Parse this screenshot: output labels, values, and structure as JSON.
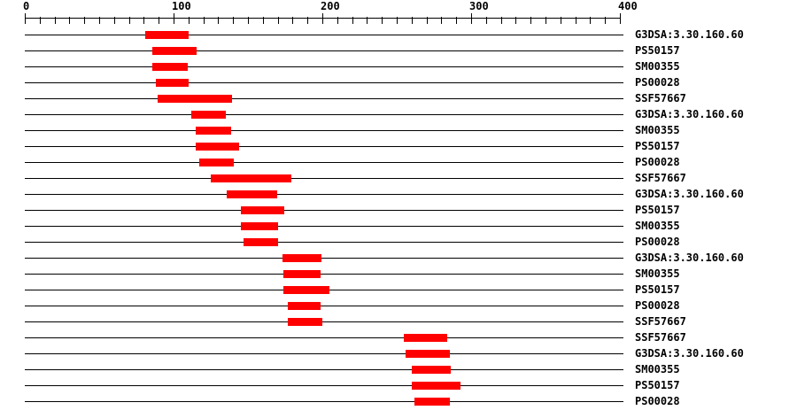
{
  "colors": {
    "background": "#ffffff",
    "axis": "#000000",
    "sequence_line": "#000000",
    "match_bar": "#ff0000",
    "text": "#000000"
  },
  "chart_data": {
    "type": "bar",
    "subtype": "horizontal-span-tracks",
    "title": "",
    "xlabel": "",
    "ylabel": "",
    "xlim": [
      0,
      400
    ],
    "grid": false,
    "legend_position": "none",
    "x_major_ticks": [
      0,
      100,
      200,
      300,
      400
    ],
    "x_major_tick_labels": [
      "0",
      "100",
      "200",
      "300",
      "400"
    ],
    "x_minor_tick_interval": 10,
    "rows": [
      {
        "label": "G3DSA:3.30.160.60",
        "start": 81,
        "end": 110
      },
      {
        "label": "PS50157",
        "start": 86,
        "end": 116
      },
      {
        "label": "SM00355",
        "start": 86,
        "end": 110
      },
      {
        "label": "PS00028",
        "start": 88,
        "end": 110
      },
      {
        "label": "SSF57667",
        "start": 89,
        "end": 139
      },
      {
        "label": "G3DSA:3.30.160.60",
        "start": 112,
        "end": 135
      },
      {
        "label": "SM00355",
        "start": 115,
        "end": 139
      },
      {
        "label": "PS50157",
        "start": 115,
        "end": 144
      },
      {
        "label": "PS00028",
        "start": 117,
        "end": 140
      },
      {
        "label": "SSF57667",
        "start": 125,
        "end": 179
      },
      {
        "label": "G3DSA:3.30.160.60",
        "start": 136,
        "end": 170
      },
      {
        "label": "PS50157",
        "start": 145,
        "end": 174
      },
      {
        "label": "SM00355",
        "start": 145,
        "end": 170
      },
      {
        "label": "PS00028",
        "start": 147,
        "end": 170
      },
      {
        "label": "G3DSA:3.30.160.60",
        "start": 173,
        "end": 199
      },
      {
        "label": "SM00355",
        "start": 174,
        "end": 199
      },
      {
        "label": "PS50157",
        "start": 174,
        "end": 205
      },
      {
        "label": "PS00028",
        "start": 177,
        "end": 199
      },
      {
        "label": "SSF57667",
        "start": 177,
        "end": 200
      },
      {
        "label": "SSF57667",
        "start": 255,
        "end": 284
      },
      {
        "label": "G3DSA:3.30.160.60",
        "start": 256,
        "end": 286
      },
      {
        "label": "SM00355",
        "start": 260,
        "end": 286
      },
      {
        "label": "PS50157",
        "start": 260,
        "end": 293
      },
      {
        "label": "PS00028",
        "start": 262,
        "end": 286
      }
    ]
  }
}
